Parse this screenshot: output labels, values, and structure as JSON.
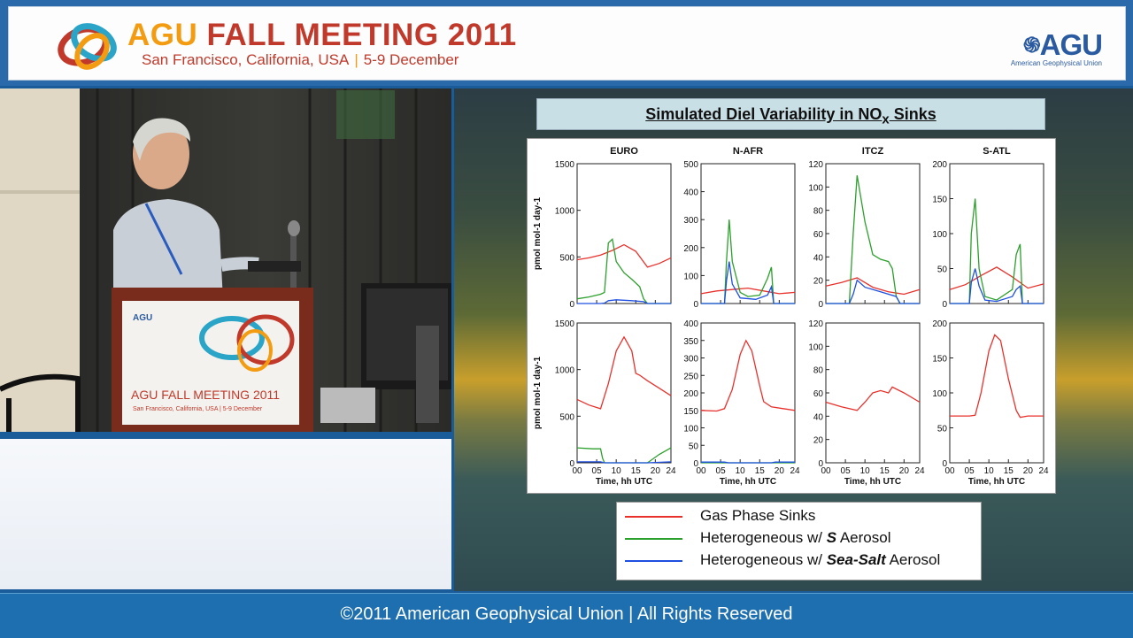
{
  "header": {
    "title_brand": "AGU",
    "title_rest": "FALL MEETING 2011",
    "subtitle_place": "San Francisco, California, USA",
    "subtitle_sep": "|",
    "subtitle_dates": "5-9 December",
    "logo_text": "AGU",
    "logo_sub": "American Geophysical Union"
  },
  "video": {
    "podium_logo": "AGU",
    "podium_title": "AGU FALL MEETING 2011",
    "podium_sub": "San Francisco, California, USA | 5-9 December"
  },
  "slide": {
    "title_main": "Simulated Diel Variability in NO",
    "title_sub": "x",
    "title_end": " Sinks"
  },
  "legend": {
    "gas": "Gas Phase Sinks",
    "s_pre": "Heterogeneous w/ ",
    "s_bold": "S",
    "s_post": " Aerosol",
    "ss_pre": "Heterogeneous w/ ",
    "ss_bold": "Sea-Salt",
    "ss_post": " Aerosol"
  },
  "colors": {
    "gas": "#e8312c",
    "sulfate": "#2ca02c",
    "seasalt": "#1f4fe0"
  },
  "footer": {
    "copyright": "©2011 American Geophysical Union | All Rights Reserved"
  },
  "chart_data": {
    "type": "line",
    "title": "Simulated Diel Variability in NOx Sinks",
    "xlabel": "Time, hh UTC",
    "ylabel": "pmol mol-1 day-1",
    "xticks": [
      "00",
      "05",
      "10",
      "15",
      "20",
      "24"
    ],
    "xlim": [
      0,
      24
    ],
    "columns": [
      "EURO",
      "N-AFR",
      "ITCZ",
      "S-ATL"
    ],
    "panels": [
      {
        "column": "EURO",
        "row": 1,
        "ylim": [
          0,
          1500
        ],
        "yticks": [
          0,
          500,
          1000,
          1500
        ],
        "series": [
          {
            "name": "Gas Phase Sinks",
            "color": "#e8312c",
            "x": [
              0,
              3,
              6,
              9,
              12,
              15,
              18,
              21,
              24
            ],
            "y": [
              470,
              490,
              520,
              570,
              630,
              560,
              390,
              430,
              490
            ]
          },
          {
            "name": "Heterogeneous w/ S Aerosol",
            "color": "#2ca02c",
            "x": [
              0,
              3,
              6,
              7,
              8,
              9,
              10,
              12,
              14,
              16,
              17,
              18,
              20,
              24
            ],
            "y": [
              50,
              70,
              100,
              120,
              650,
              690,
              450,
              330,
              260,
              180,
              50,
              0,
              0,
              0
            ]
          },
          {
            "name": "Heterogeneous w/ Sea-Salt Aerosol",
            "color": "#1f4fe0",
            "x": [
              0,
              6,
              7,
              8,
              10,
              14,
              17,
              18,
              24
            ],
            "y": [
              0,
              0,
              5,
              30,
              40,
              30,
              20,
              0,
              0
            ]
          }
        ]
      },
      {
        "column": "N-AFR",
        "row": 1,
        "ylim": [
          0,
          500
        ],
        "yticks": [
          0,
          100,
          200,
          300,
          400,
          500
        ],
        "series": [
          {
            "name": "Gas Phase Sinks",
            "color": "#e8312c",
            "x": [
              0,
              4,
              8,
              12,
              16,
              20,
              24
            ],
            "y": [
              35,
              45,
              50,
              55,
              45,
              35,
              40
            ]
          },
          {
            "name": "Heterogeneous w/ S Aerosol",
            "color": "#2ca02c",
            "x": [
              0,
              6,
              6.5,
              7.2,
              8,
              10,
              12,
              15,
              17,
              18,
              18.6,
              24
            ],
            "y": [
              0,
              0,
              150,
              300,
              150,
              40,
              25,
              30,
              90,
              130,
              0,
              0
            ]
          },
          {
            "name": "Heterogeneous w/ Sea-Salt Aerosol",
            "color": "#1f4fe0",
            "x": [
              0,
              6,
              6.5,
              7.2,
              8,
              10,
              14,
              17,
              18,
              18.6,
              24
            ],
            "y": [
              0,
              0,
              80,
              150,
              70,
              20,
              15,
              30,
              60,
              0,
              0
            ]
          }
        ]
      },
      {
        "column": "ITCZ",
        "row": 1,
        "ylim": [
          0,
          120
        ],
        "yticks": [
          0,
          20,
          40,
          60,
          80,
          100,
          120
        ],
        "series": [
          {
            "name": "Gas Phase Sinks",
            "color": "#e8312c",
            "x": [
              0,
              4,
              8,
              12,
              16,
              20,
              24
            ],
            "y": [
              15,
              18,
              22,
              14,
              10,
              8,
              12
            ]
          },
          {
            "name": "Heterogeneous w/ S Aerosol",
            "color": "#2ca02c",
            "x": [
              0,
              6,
              7,
              8,
              10,
              12,
              14,
              16,
              17,
              18,
              19,
              24
            ],
            "y": [
              0,
              0,
              60,
              110,
              70,
              42,
              38,
              36,
              30,
              6,
              0,
              0
            ]
          },
          {
            "name": "Heterogeneous w/ Sea-Salt Aerosol",
            "color": "#1f4fe0",
            "x": [
              0,
              6,
              7,
              8,
              10,
              14,
              18,
              19,
              24
            ],
            "y": [
              0,
              0,
              8,
              20,
              14,
              10,
              6,
              0,
              0
            ]
          }
        ]
      },
      {
        "column": "S-ATL",
        "row": 1,
        "ylim": [
          0,
          200
        ],
        "yticks": [
          0,
          50,
          100,
          150,
          200
        ],
        "series": [
          {
            "name": "Gas Phase Sinks",
            "color": "#e8312c",
            "x": [
              0,
              4,
              8,
              12,
              16,
              20,
              24
            ],
            "y": [
              20,
              27,
              40,
              52,
              38,
              22,
              28
            ]
          },
          {
            "name": "Heterogeneous w/ S Aerosol",
            "color": "#2ca02c",
            "x": [
              0,
              5,
              5.5,
              6.5,
              7.5,
              9,
              12,
              16,
              17,
              18,
              18.6,
              24
            ],
            "y": [
              0,
              0,
              100,
              150,
              50,
              10,
              5,
              20,
              70,
              85,
              0,
              0
            ]
          },
          {
            "name": "Heterogeneous w/ Sea-Salt Aerosol",
            "color": "#1f4fe0",
            "x": [
              0,
              5,
              5.5,
              6.5,
              7.5,
              9,
              12,
              16,
              17,
              18,
              18.6,
              24
            ],
            "y": [
              0,
              0,
              30,
              50,
              25,
              5,
              3,
              10,
              20,
              25,
              0,
              0
            ]
          }
        ]
      },
      {
        "column": "EURO",
        "row": 2,
        "ylim": [
          0,
          1500
        ],
        "yticks": [
          0,
          500,
          1000,
          1500
        ],
        "series": [
          {
            "name": "Gas Phase Sinks",
            "color": "#e8312c",
            "x": [
              0,
              3,
              6,
              8,
              10,
              12,
              14,
              15,
              16,
              18,
              21,
              24
            ],
            "y": [
              680,
              620,
              580,
              850,
              1200,
              1350,
              1200,
              960,
              940,
              880,
              800,
              720
            ]
          },
          {
            "name": "Heterogeneous w/ S Aerosol",
            "color": "#2ca02c",
            "x": [
              0,
              4,
              6,
              6.5,
              7,
              18,
              21,
              24
            ],
            "y": [
              160,
              150,
              150,
              50,
              0,
              0,
              90,
              160
            ]
          },
          {
            "name": "Heterogeneous w/ Sea-Salt Aerosol",
            "color": "#1f4fe0",
            "x": [
              0,
              6,
              7,
              18,
              24
            ],
            "y": [
              10,
              10,
              0,
              0,
              10
            ]
          }
        ]
      },
      {
        "column": "N-AFR",
        "row": 2,
        "ylim": [
          0,
          400
        ],
        "yticks": [
          0,
          50,
          100,
          150,
          200,
          250,
          300,
          350,
          400
        ],
        "series": [
          {
            "name": "Gas Phase Sinks",
            "color": "#e8312c",
            "x": [
              0,
              4,
              6,
              8,
              10,
              11.5,
              13,
              15,
              16,
              18,
              21,
              24
            ],
            "y": [
              150,
              148,
              155,
              210,
              310,
              350,
              320,
              220,
              175,
              160,
              155,
              150
            ]
          },
          {
            "name": "Heterogeneous w/ S Aerosol",
            "color": "#2ca02c",
            "x": [
              0,
              24
            ],
            "y": [
              0,
              0
            ]
          },
          {
            "name": "Heterogeneous w/ Sea-Salt Aerosol",
            "color": "#1f4fe0",
            "x": [
              0,
              6,
              7,
              18,
              19,
              24
            ],
            "y": [
              2,
              2,
              0,
              0,
              2,
              2
            ]
          }
        ]
      },
      {
        "column": "ITCZ",
        "row": 2,
        "ylim": [
          0,
          120
        ],
        "yticks": [
          0,
          20,
          40,
          60,
          80,
          100,
          120
        ],
        "series": [
          {
            "name": "Gas Phase Sinks",
            "color": "#e8312c",
            "x": [
              0,
              4,
              8,
              10,
              12,
              14,
              16,
              17,
              20,
              24
            ],
            "y": [
              52,
              48,
              45,
              52,
              60,
              62,
              60,
              65,
              60,
              52
            ]
          }
        ]
      },
      {
        "column": "S-ATL",
        "row": 2,
        "ylim": [
          0,
          200
        ],
        "yticks": [
          0,
          50,
          100,
          150,
          200
        ],
        "series": [
          {
            "name": "Gas Phase Sinks",
            "color": "#e8312c",
            "x": [
              0,
              5,
              6.5,
              8,
              10,
              11.5,
              13,
              15,
              17,
              18,
              20,
              24
            ],
            "y": [
              67,
              67,
              68,
              100,
              160,
              183,
              175,
              120,
              75,
              65,
              67,
              67
            ]
          }
        ]
      }
    ]
  }
}
